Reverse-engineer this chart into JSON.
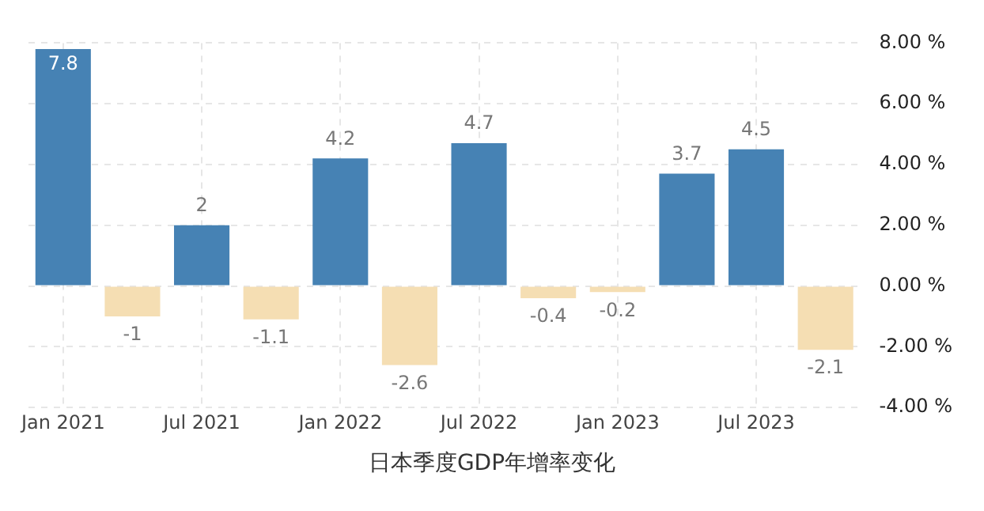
{
  "chart_data": {
    "type": "bar",
    "title": "日本季度GDP年增率变化",
    "categories": [
      "Jan 2021",
      null,
      "Jul 2021",
      null,
      "Jan 2022",
      null,
      "Jul 2022",
      null,
      "Jan 2023",
      null,
      "Jul 2023",
      null
    ],
    "values": [
      7.8,
      -1,
      2,
      -1.1,
      4.2,
      -2.6,
      4.7,
      -0.4,
      -0.2,
      3.7,
      4.5,
      -2.1
    ],
    "colors": [
      "#4682b4",
      "#f5deb3",
      "#4682b4",
      "#f5deb3",
      "#4682b4",
      "#f5deb3",
      "#4682b4",
      "#f5deb3",
      "#f5deb3",
      "#4682b4",
      "#4682b4",
      "#f5deb3"
    ],
    "ylim": [
      -4,
      8
    ],
    "yticks": [
      {
        "value": -4,
        "label": "-4.00 %"
      },
      {
        "value": -2,
        "label": "-2.00 %"
      },
      {
        "value": 0,
        "label": "0.00 %"
      },
      {
        "value": 2,
        "label": "2.00 %"
      },
      {
        "value": 4,
        "label": "4.00 %"
      },
      {
        "value": 6,
        "label": "6.00 %"
      },
      {
        "value": 8,
        "label": "8.00 %"
      }
    ],
    "grid": true,
    "data_labels": true
  }
}
